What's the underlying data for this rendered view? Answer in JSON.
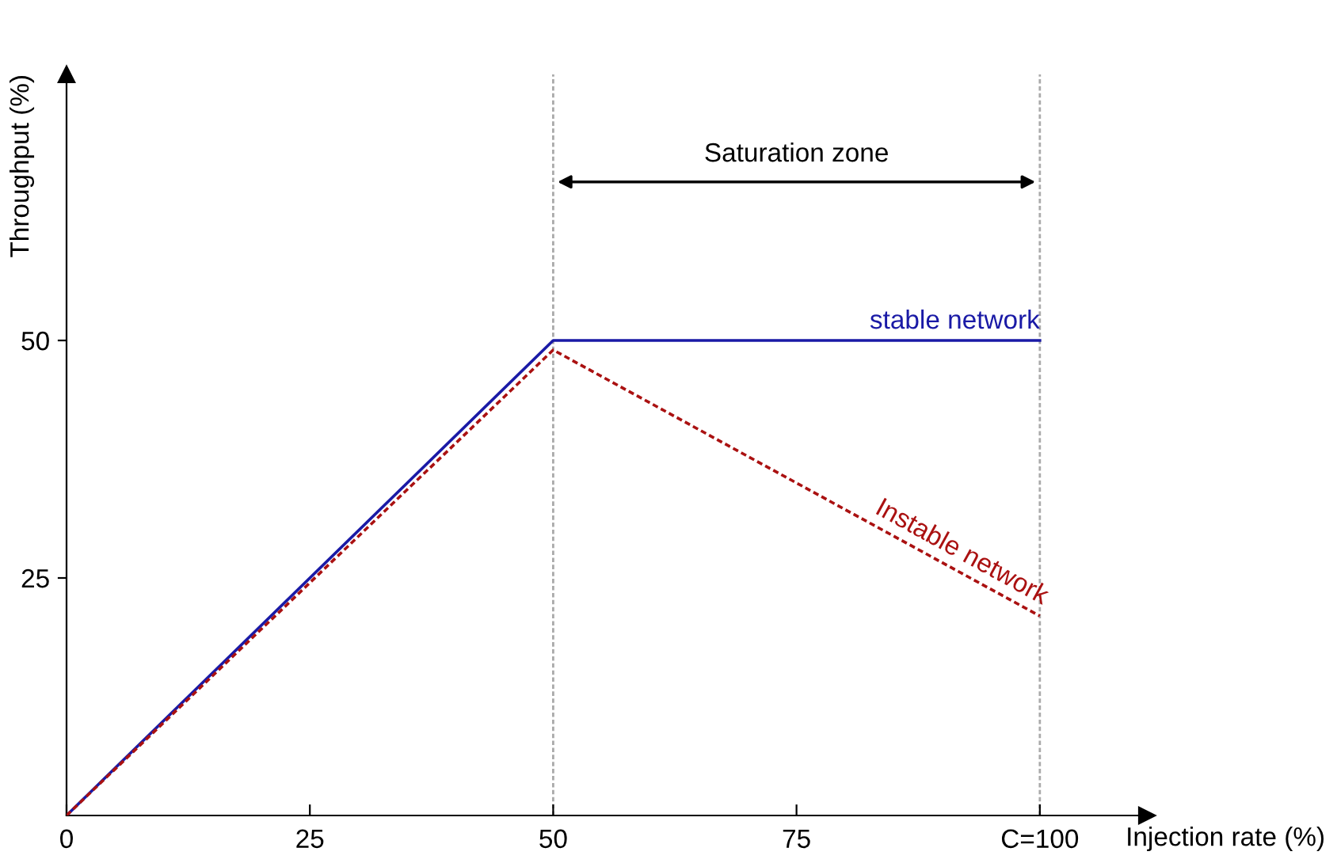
{
  "chart_data": {
    "type": "line",
    "xlabel": "Injection rate (%)",
    "ylabel": "Throughput (%)",
    "x": [
      0,
      50,
      100
    ],
    "series": [
      {
        "name": "stable network",
        "color": "#1a1aa6",
        "values": [
          0,
          50,
          50
        ],
        "line_style": "solid"
      },
      {
        "name": "Instable network",
        "color": "#aa1111",
        "values": [
          0,
          49,
          21
        ],
        "line_style": "dotted"
      }
    ],
    "xlim": [
      0,
      111
    ],
    "ylim": [
      0,
      78
    ],
    "xticks": [
      0,
      25,
      50,
      75,
      {
        "value": 100,
        "label": "C=100"
      }
    ],
    "yticks": [
      25,
      50
    ],
    "ref_lines": [
      {
        "axis": "x",
        "value": 50,
        "color": "#aaaaaa",
        "line_style": "dotted"
      },
      {
        "axis": "x",
        "value": 100,
        "color": "#aaaaaa",
        "line_style": "dotted"
      }
    ],
    "annotations": [
      "Saturation zone"
    ],
    "grid": false,
    "legend": false,
    "marker": "none"
  }
}
